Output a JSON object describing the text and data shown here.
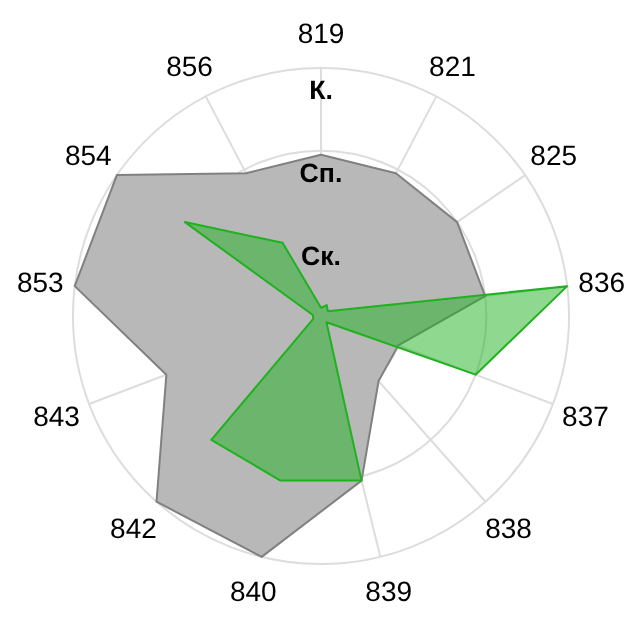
{
  "chart_data": {
    "type": "radar",
    "categories": [
      "819",
      "821",
      "825",
      "836",
      "837",
      "838",
      "839",
      "840",
      "842",
      "843",
      "853",
      "854",
      "856"
    ],
    "ylim": [
      0,
      3
    ],
    "yticks": [
      {
        "value": 1,
        "label": "Ск."
      },
      {
        "value": 2,
        "label": "Сп."
      },
      {
        "value": 3,
        "label": "К."
      }
    ],
    "series": [
      {
        "color": "#b8b8b8",
        "values": [
          1.95,
          1.95,
          2.0,
          2.0,
          1.0,
          1.05,
          2.05,
          3.0,
          3.0,
          2.0,
          3.0,
          3.0,
          1.95
        ]
      },
      {
        "color": "#1fb11f",
        "values": [
          0.1,
          0.15,
          0.1,
          3.0,
          2.0,
          0.1,
          2.05,
          2.05,
          2.0,
          0.1,
          0.1,
          2.0,
          1.0
        ]
      }
    ]
  }
}
